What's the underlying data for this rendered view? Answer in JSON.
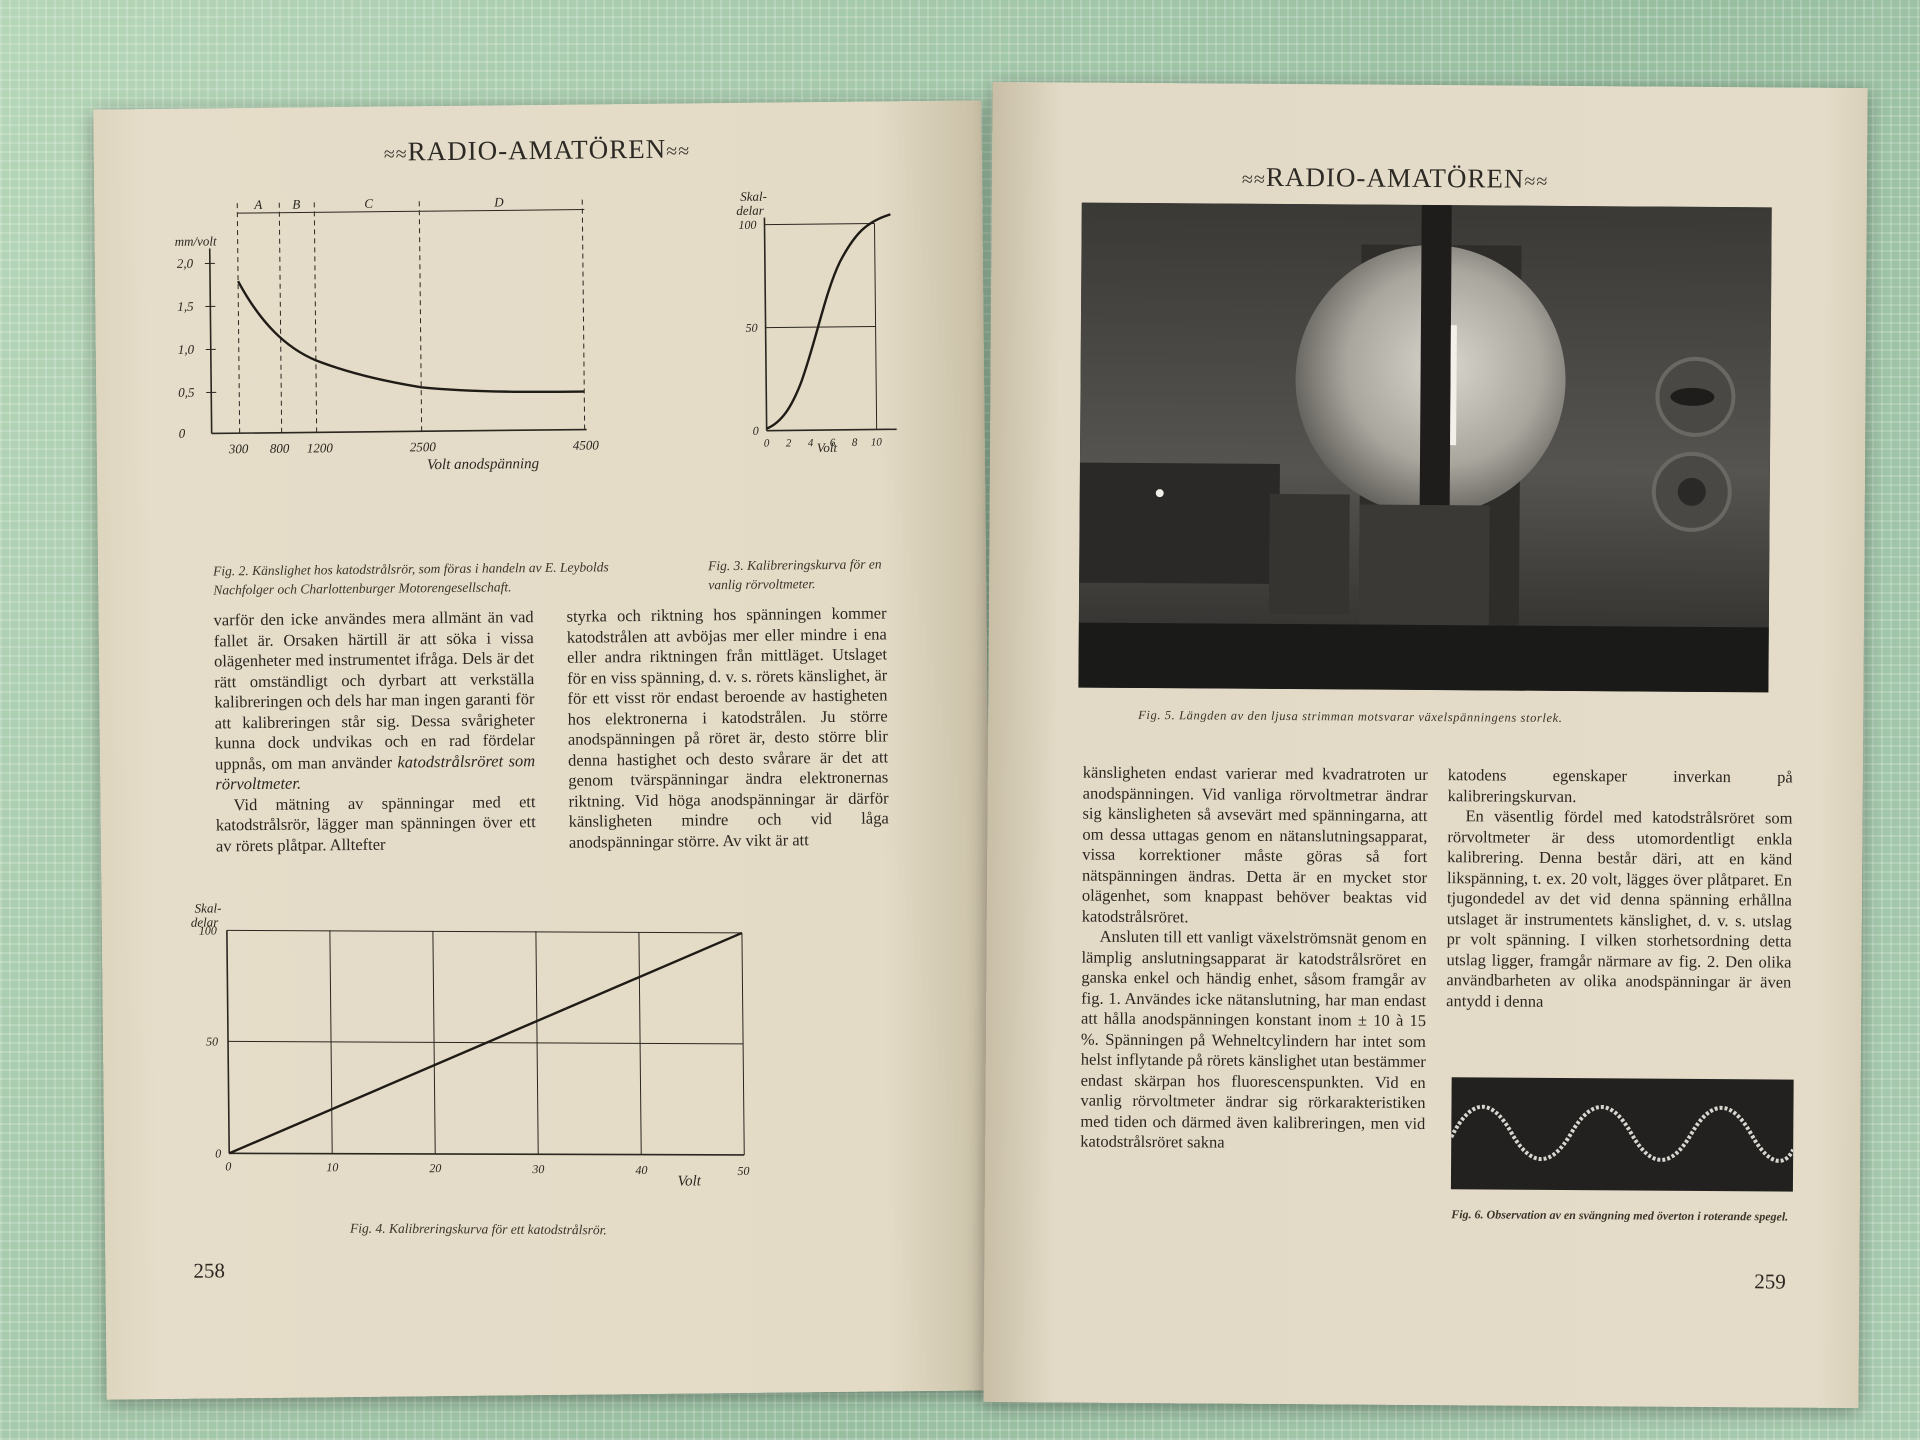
{
  "masthead": {
    "left": "RADIO-AMATÖREN",
    "right": "RADIO-AMATÖREN",
    "wave_left": "≈≈",
    "wave_right": "≈≈"
  },
  "left_page": {
    "fig2": {
      "ylabel": "mm/volt",
      "xlabel": "Volt anodspänning",
      "y_ticks": [
        "0",
        "0,5",
        "1,0",
        "1,5",
        "2,0"
      ],
      "x_ticks": [
        "300",
        "800",
        "1200",
        "2500",
        "4500"
      ],
      "regions": [
        "A",
        "B",
        "C",
        "D"
      ],
      "caption": "Fig. 2. Känslighet hos katodstrålsrör, som föras i handeln av E. Leybolds Nachfolger och Charlottenburger Motorengesellschaft."
    },
    "fig3": {
      "ylabel_1": "Skal-",
      "ylabel_2": "delar",
      "xlabel": "Volt",
      "y_ticks": [
        "0",
        "50",
        "100"
      ],
      "x_ticks": [
        "0",
        "2",
        "4",
        "6",
        "8",
        "10"
      ],
      "caption": "Fig. 3. Kalibreringskurva för en vanlig rörvoltmeter."
    },
    "col1": [
      "varför den icke användes mera allmänt än vad fallet är. Orsaken härtill är att söka i vissa olägenheter med instrumentet ifråga. Dels är det rätt omständligt och dyrbart att verkställa kalibreringen och dels har man ingen garanti för att kalibreringen står sig. Dessa svårigheter kunna dock undvikas och en rad fördelar uppnås, om man använder ",
      "katodstrålsröret som rörvoltmeter.",
      "Vid mätning av spänningar med ett katodstrålsrör, lägger man spänningen över ett av rörets plåtpar. Alltefter"
    ],
    "col2": "styrka och riktning hos spänningen kommer katodstrålen att avböjas mer eller mindre i ena eller andra riktningen från mittläget. Utslaget för en viss spänning, d. v. s. rörets känslighet, är för ett visst rör endast beroende av hastigheten hos elektronerna i katodstrålen. Ju större anodspänningen på röret är, desto större blir denna hastighet och desto svårare är det att genom tvärspänningar ändra elektronernas riktning. Vid höga anodspänningar är därför känsligheten mindre och vid låga anodspänningar större. Av vikt är att",
    "fig4": {
      "ylabel_1": "Skal-",
      "ylabel_2": "delar",
      "xlabel": "Volt",
      "y_ticks": [
        "0",
        "50",
        "100"
      ],
      "x_ticks": [
        "0",
        "10",
        "20",
        "30",
        "40",
        "50"
      ],
      "caption": "Fig. 4. Kalibreringskurva för ett katodstrålsrör."
    },
    "page_number": "258"
  },
  "right_page": {
    "fig5_caption": "Fig. 5. Längden av den ljusa strimman motsvarar växelspänningens storlek.",
    "col1": [
      "känsligheten endast varierar med kvadratroten ur anodspänningen. Vid vanliga rörvoltmetrar ändrar sig känsligheten så avsevärt med spänningarna, att om dessa uttagas genom en nätanslutningsapparat, vissa korrektioner måste göras så fort nätspänningen ändras. Detta är en mycket stor olägenhet, som knappast behöver beaktas vid katodstrålsröret.",
      "Ansluten till ett vanligt växelströmsnät genom en lämplig anslutningsapparat är katodstrålsröret en ganska enkel och händig enhet, såsom framgår av fig. 1. Användes icke nätanslutning, har man endast att hålla anodspänningen konstant inom ± 10 à 15 %. Spänningen på Wehneltcylindern har intet som helst inflytande på rörets känslighet utan bestämmer endast skärpan hos fluorescenspunkten. Vid en vanlig rörvoltmeter ändrar sig rörkarakteristiken med tiden och därmed även kalibreringen, men vid katodstrålsröret sakna"
    ],
    "col2": [
      "katodens egenskaper inverkan på kalibreringskurvan.",
      "En väsentlig fördel med katodstrålsröret som rörvoltmeter är dess utomordentligt enkla kalibrering. Denna består däri, att en känd likspänning, t. ex. 20 volt, lägges över plåtparet. En tjugondedel av det vid denna spänning erhållna utslaget är instrumentets känslighet, d. v. s. utslag pr volt spänning. I vilken storhetsordning detta utslag ligger, framgår närmare av fig. 2. Den olika användbarheten av olika anodspänningar är även antydd i denna"
    ],
    "fig6_caption": "Fig. 6. Observation av en svängning med överton i roterande spegel.",
    "page_number": "259"
  }
}
